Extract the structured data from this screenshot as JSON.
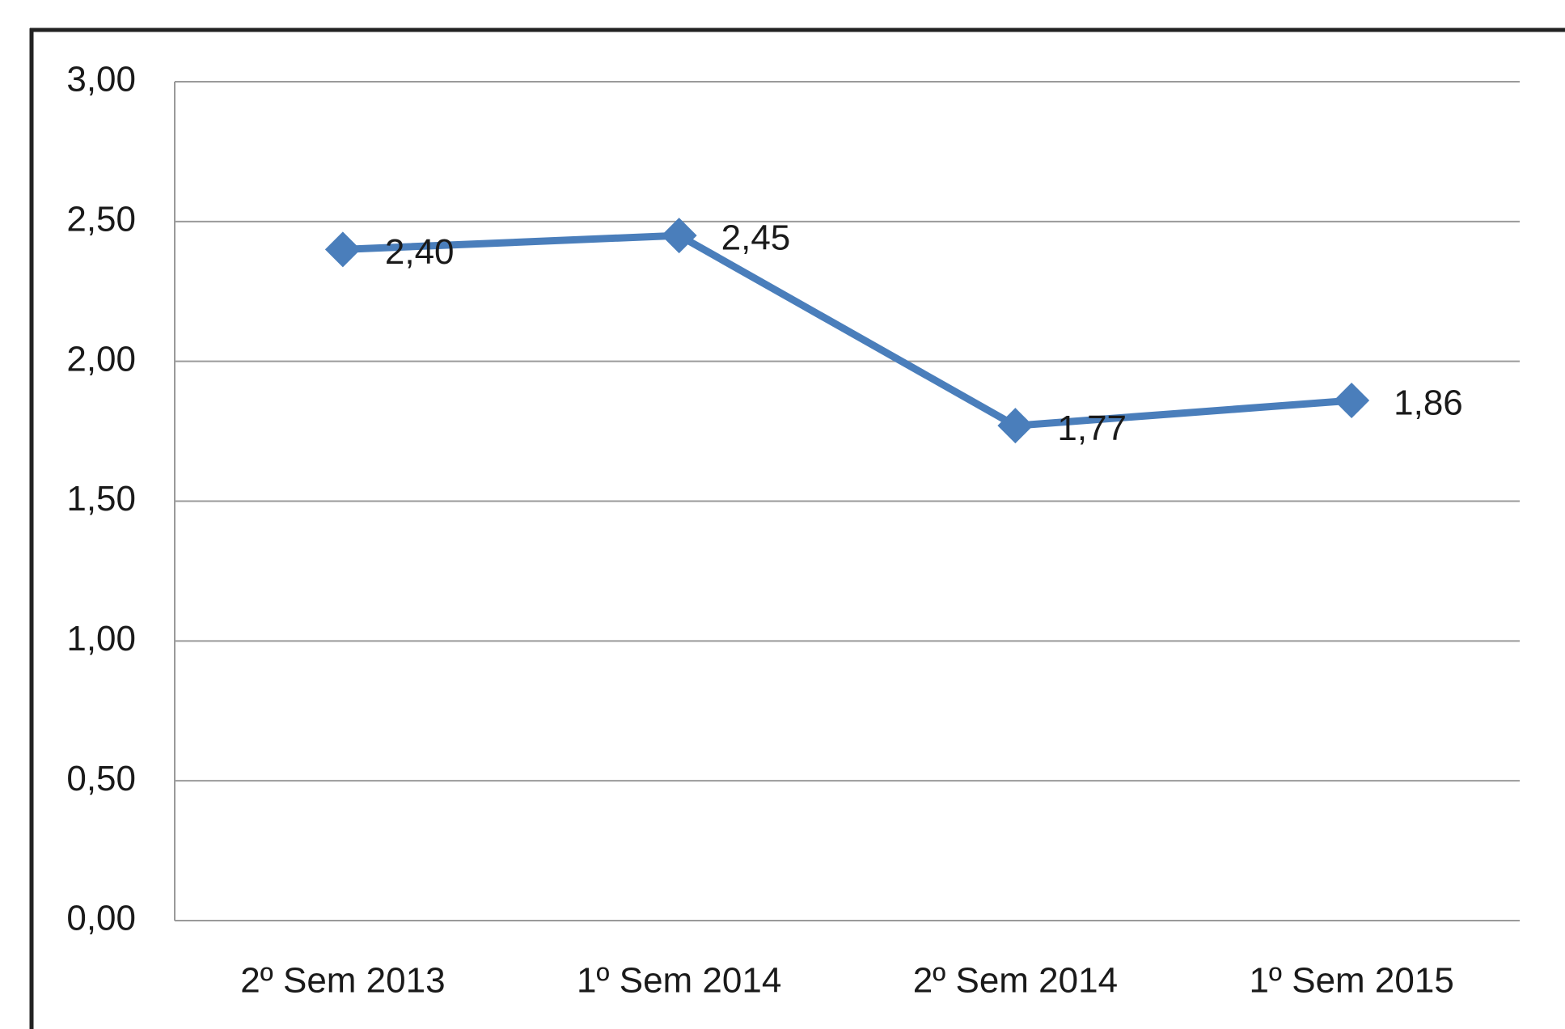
{
  "chart_data": {
    "type": "line",
    "categories": [
      "2º Sem 2013",
      "1º Sem 2014",
      "2º Sem 2014",
      "1º Sem 2015"
    ],
    "series": [
      {
        "color": "#4a7ebb",
        "values": [
          2.4,
          2.45,
          1.77,
          1.86
        ],
        "value_labels": [
          "2,40",
          "2,45",
          "1,77",
          "1,86"
        ]
      }
    ],
    "ylim": [
      0,
      3
    ],
    "yticks": [
      {
        "value": 0,
        "label": "0,00"
      },
      {
        "value": 0.5,
        "label": "0,50"
      },
      {
        "value": 1,
        "label": "1,00"
      },
      {
        "value": 1.5,
        "label": "1,50"
      },
      {
        "value": 2,
        "label": "2,00"
      },
      {
        "value": 2.5,
        "label": "2,50"
      },
      {
        "value": 3,
        "label": "3,00"
      }
    ],
    "grid": true
  }
}
